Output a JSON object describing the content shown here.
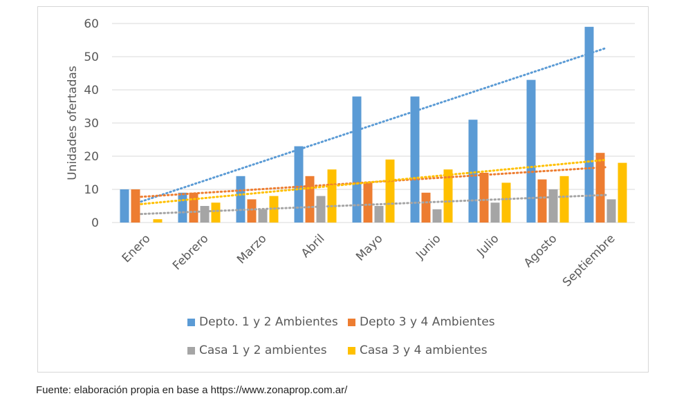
{
  "chart_data": {
    "type": "bar",
    "ylabel": "Unidades ofertadas",
    "xlabel": "",
    "ylim": [
      0,
      60
    ],
    "yticks": [
      0,
      10,
      20,
      30,
      40,
      50,
      60
    ],
    "grid": true,
    "categories": [
      "Enero",
      "Febrero",
      "Marzo",
      "Abril",
      "Mayo",
      "Junio",
      "Julio",
      "Agosto",
      "Septiembre"
    ],
    "series": [
      {
        "name": "Depto. 1 y 2 Ambientes",
        "color": "#5b9bd5",
        "values": [
          10,
          9,
          14,
          23,
          38,
          38,
          31,
          43,
          59
        ]
      },
      {
        "name": "Depto 3 y 4 Ambientes",
        "color": "#ed7d31",
        "values": [
          10,
          9,
          7,
          14,
          12,
          9,
          15,
          13,
          21
        ]
      },
      {
        "name": "Casa 1 y 2 ambientes",
        "color": "#a5a5a5",
        "values": [
          0,
          5,
          4,
          8,
          5,
          4,
          6,
          10,
          7
        ]
      },
      {
        "name": "Casa 3 y 4 ambientes",
        "color": "#ffc000",
        "values": [
          1,
          6,
          8,
          16,
          19,
          16,
          12,
          14,
          18
        ]
      }
    ],
    "trendlines": "linear (dotted), one per series",
    "legend_position": "bottom"
  },
  "source_note": "Fuente: elaboración propia en base a https://www.zonaprop.com.ar/"
}
